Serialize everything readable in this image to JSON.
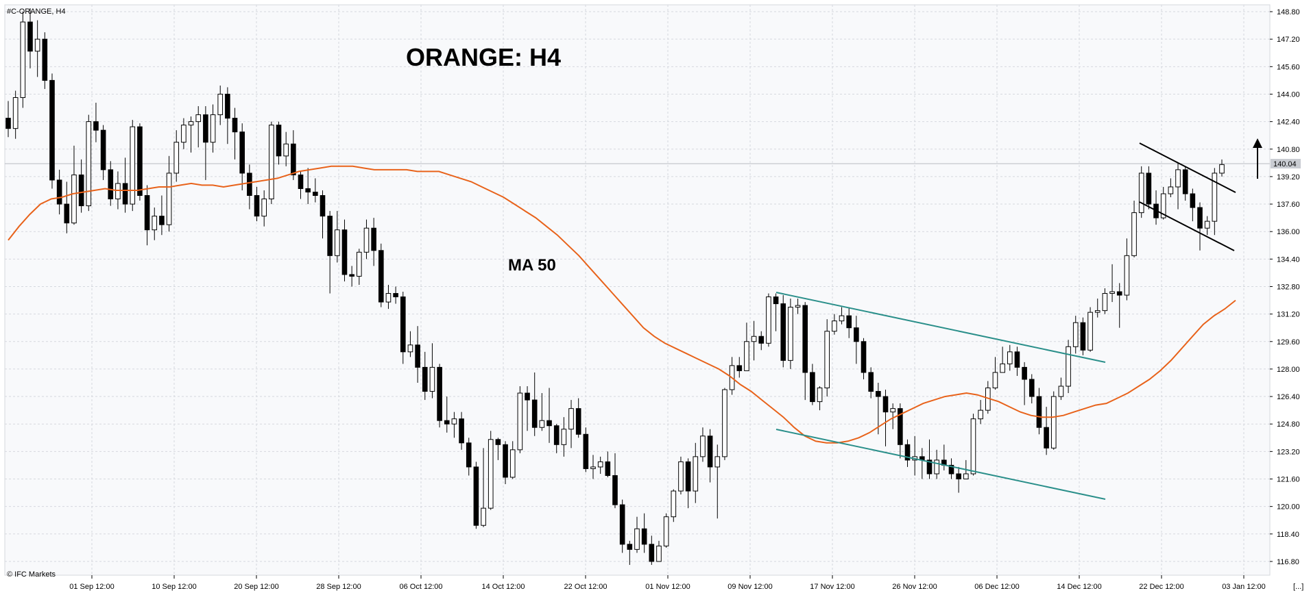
{
  "window": {
    "symbol_label": "#C-ORANGE, H4",
    "watermark": "© IFC Markets",
    "corner_marker": "[...]"
  },
  "chart_data": {
    "type": "candlestick",
    "title": "ORANGE: H4",
    "indicator_label": "MA 50",
    "current_price_label": "140.04",
    "ylim": [
      116.0,
      149.2
    ],
    "y_ticks": [
      "148.80",
      "147.20",
      "145.60",
      "144.00",
      "142.40",
      "140.80",
      "139.20",
      "137.60",
      "136.00",
      "134.40",
      "132.80",
      "131.20",
      "129.60",
      "128.00",
      "126.40",
      "124.80",
      "123.20",
      "121.60",
      "120.00",
      "118.40",
      "116.80"
    ],
    "x_ticks": [
      "01 Sep 12:00",
      "10 Sep 12:00",
      "20 Sep 12:00",
      "28 Sep 12:00",
      "06 Oct 12:00",
      "14 Oct 12:00",
      "22 Oct 12:00",
      "01 Nov 12:00",
      "09 Nov 12:00",
      "17 Nov 12:00",
      "26 Nov 12:00",
      "06 Dec 12:00",
      "14 Dec 12:00",
      "22 Dec 12:00",
      "03 Jan 12:00"
    ],
    "grid": true,
    "colors": {
      "bull": "#ffffff",
      "bear": "#000000",
      "ma": "#e8621a",
      "channel": "#2a8f8a",
      "trendline": "#000000",
      "arrow": "#000000"
    },
    "series": [
      {
        "name": "MA 50",
        "values": [
          135.5,
          136.3,
          137.0,
          137.6,
          137.9,
          138.0,
          138.2,
          138.3,
          138.4,
          138.5,
          138.4,
          138.4,
          138.4,
          138.5,
          138.6,
          138.6,
          138.7,
          138.8,
          138.7,
          138.7,
          138.6,
          138.7,
          138.8,
          138.9,
          139.0,
          139.1,
          139.3,
          139.5,
          139.6,
          139.7,
          139.8,
          139.8,
          139.8,
          139.7,
          139.6,
          139.6,
          139.6,
          139.6,
          139.5,
          139.5,
          139.5,
          139.3,
          139.1,
          138.9,
          138.6,
          138.3,
          138.0,
          137.6,
          137.2,
          136.8,
          136.3,
          135.8,
          135.2,
          134.6,
          133.9,
          133.2,
          132.5,
          131.8,
          131.1,
          130.4,
          129.9,
          129.5,
          129.2,
          128.9,
          128.6,
          128.3,
          128.0,
          127.6,
          127.1,
          126.7,
          126.2,
          125.7,
          125.2,
          124.6,
          124.1,
          123.8,
          123.7,
          123.7,
          123.8,
          124.0,
          124.3,
          124.7,
          125.1,
          125.4,
          125.7,
          126.0,
          126.2,
          126.4,
          126.5,
          126.6,
          126.5,
          126.3,
          126.1,
          125.8,
          125.5,
          125.3,
          125.2,
          125.2,
          125.3,
          125.5,
          125.7,
          125.9,
          126.0,
          126.3,
          126.6,
          127.0,
          127.4,
          127.9,
          128.5,
          129.2,
          129.9,
          130.6,
          131.1,
          131.5,
          132.0
        ]
      }
    ],
    "candles": [
      [
        142.6,
        142.0,
        143.6,
        141.5
      ],
      [
        142.0,
        143.8,
        144.2,
        141.4
      ],
      [
        143.8,
        148.2,
        148.8,
        143.2
      ],
      [
        148.2,
        146.5,
        149.0,
        145.5
      ],
      [
        146.5,
        147.2,
        148.3,
        145.0
      ],
      [
        147.2,
        144.8,
        147.6,
        144.3
      ],
      [
        144.8,
        139.0,
        145.2,
        138.5
      ],
      [
        139.0,
        137.6,
        139.6,
        137.0
      ],
      [
        137.6,
        136.5,
        138.9,
        135.9
      ],
      [
        136.5,
        139.3,
        141.0,
        136.4
      ],
      [
        139.3,
        137.5,
        140.2,
        137.1
      ],
      [
        137.5,
        142.4,
        142.8,
        137.2
      ],
      [
        142.4,
        141.9,
        143.5,
        141.2
      ],
      [
        141.9,
        139.6,
        142.2,
        139.0
      ],
      [
        139.6,
        137.9,
        140.1,
        137.5
      ],
      [
        137.9,
        138.8,
        139.5,
        137.3
      ],
      [
        138.8,
        137.6,
        140.3,
        137.1
      ],
      [
        137.6,
        142.1,
        142.5,
        137.2
      ],
      [
        142.1,
        138.1,
        142.3,
        137.8
      ],
      [
        138.1,
        136.1,
        138.7,
        135.2
      ],
      [
        136.1,
        136.9,
        137.4,
        135.5
      ],
      [
        136.9,
        136.4,
        138.1,
        135.8
      ],
      [
        136.4,
        139.4,
        140.4,
        136.0
      ],
      [
        139.4,
        141.2,
        141.9,
        138.9
      ],
      [
        141.2,
        142.2,
        142.6,
        140.8
      ],
      [
        142.2,
        142.4,
        142.7,
        140.6
      ],
      [
        142.4,
        142.8,
        143.3,
        140.9
      ],
      [
        142.8,
        141.2,
        143.3,
        139.0
      ],
      [
        141.2,
        142.8,
        143.4,
        140.6
      ],
      [
        142.8,
        144.0,
        144.5,
        142.2
      ],
      [
        144.0,
        142.6,
        144.4,
        141.1
      ],
      [
        142.6,
        141.8,
        143.2,
        140.2
      ],
      [
        141.8,
        139.4,
        142.3,
        138.4
      ],
      [
        139.4,
        138.1,
        139.9,
        137.3
      ],
      [
        138.1,
        136.9,
        138.6,
        136.6
      ],
      [
        136.9,
        137.9,
        138.4,
        136.3
      ],
      [
        137.9,
        142.2,
        142.4,
        137.6
      ],
      [
        142.2,
        140.4,
        142.4,
        139.9
      ],
      [
        140.4,
        141.1,
        141.8,
        139.8
      ],
      [
        141.1,
        139.3,
        141.9,
        139.0
      ],
      [
        139.3,
        138.5,
        139.5,
        137.9
      ],
      [
        138.5,
        138.3,
        139.7,
        137.6
      ],
      [
        138.3,
        138.1,
        139.1,
        137.7
      ],
      [
        138.1,
        136.9,
        138.4,
        135.6
      ],
      [
        136.9,
        134.6,
        137.2,
        132.4
      ],
      [
        134.6,
        136.1,
        137.2,
        134.2
      ],
      [
        136.1,
        133.5,
        136.7,
        133.1
      ],
      [
        133.5,
        133.4,
        134.0,
        132.8
      ],
      [
        133.4,
        134.8,
        135.0,
        132.9
      ],
      [
        134.8,
        136.2,
        136.7,
        134.4
      ],
      [
        136.2,
        134.9,
        136.8,
        134.0
      ],
      [
        134.9,
        131.9,
        135.3,
        131.6
      ],
      [
        131.9,
        132.4,
        132.9,
        131.5
      ],
      [
        132.4,
        132.2,
        132.8,
        131.8
      ],
      [
        132.2,
        129.0,
        132.5,
        128.3
      ],
      [
        129.0,
        129.4,
        130.2,
        128.7
      ],
      [
        129.4,
        128.1,
        130.5,
        127.2
      ],
      [
        128.1,
        126.7,
        129.0,
        126.2
      ],
      [
        126.7,
        128.1,
        129.5,
        126.3
      ],
      [
        128.1,
        125.0,
        128.3,
        124.6
      ],
      [
        125.0,
        124.8,
        126.4,
        124.3
      ],
      [
        124.8,
        125.1,
        125.5,
        124.0
      ],
      [
        125.1,
        123.7,
        125.5,
        123.3
      ],
      [
        123.7,
        122.3,
        124.0,
        121.8
      ],
      [
        122.3,
        118.9,
        122.6,
        118.7
      ],
      [
        118.9,
        119.9,
        123.4,
        118.8
      ],
      [
        119.9,
        123.9,
        124.4,
        119.8
      ],
      [
        123.9,
        123.6,
        124.0,
        122.7
      ],
      [
        123.6,
        121.7,
        123.8,
        121.3
      ],
      [
        121.7,
        123.3,
        123.8,
        121.6
      ],
      [
        123.3,
        126.6,
        127.0,
        123.1
      ],
      [
        126.6,
        126.2,
        127.0,
        124.4
      ],
      [
        126.2,
        124.6,
        127.8,
        124.1
      ],
      [
        124.6,
        125.0,
        126.6,
        124.4
      ],
      [
        125.0,
        124.7,
        126.9,
        123.7
      ],
      [
        124.7,
        123.6,
        124.8,
        123.1
      ],
      [
        123.6,
        124.5,
        125.2,
        122.9
      ],
      [
        124.5,
        125.7,
        126.2,
        123.4
      ],
      [
        125.7,
        124.2,
        126.3,
        124.0
      ],
      [
        124.2,
        122.2,
        124.6,
        122.0
      ],
      [
        122.2,
        122.3,
        123.0,
        121.6
      ],
      [
        122.3,
        122.6,
        122.9,
        121.9
      ],
      [
        122.6,
        121.8,
        123.2,
        121.7
      ],
      [
        121.8,
        120.1,
        123.1,
        119.9
      ],
      [
        120.1,
        117.8,
        120.4,
        117.3
      ],
      [
        117.8,
        117.5,
        118.0,
        116.6
      ],
      [
        117.5,
        118.7,
        119.4,
        117.3
      ],
      [
        118.7,
        117.8,
        119.6,
        117.3
      ],
      [
        117.8,
        116.8,
        118.3,
        116.6
      ],
      [
        116.8,
        117.7,
        118.0,
        116.9
      ],
      [
        117.7,
        119.4,
        119.6,
        117.6
      ],
      [
        119.4,
        120.9,
        121.0,
        119.1
      ],
      [
        120.9,
        122.6,
        122.9,
        120.7
      ],
      [
        122.6,
        120.9,
        122.8,
        119.9
      ],
      [
        120.9,
        122.9,
        123.7,
        120.2
      ],
      [
        122.9,
        124.1,
        124.6,
        122.6
      ],
      [
        124.1,
        122.3,
        124.5,
        121.4
      ],
      [
        122.3,
        122.9,
        123.6,
        119.3
      ],
      [
        122.9,
        126.8,
        126.9,
        122.7
      ],
      [
        126.8,
        128.2,
        128.7,
        126.5
      ],
      [
        128.2,
        127.9,
        128.7,
        127.5
      ],
      [
        127.9,
        129.6,
        130.7,
        128.0
      ],
      [
        129.6,
        129.9,
        130.8,
        128.5
      ],
      [
        129.9,
        129.5,
        130.2,
        129.1
      ],
      [
        129.5,
        132.2,
        132.4,
        129.3
      ],
      [
        132.2,
        131.8,
        132.4,
        130.2
      ],
      [
        131.8,
        128.5,
        132.3,
        128.1
      ],
      [
        128.5,
        131.6,
        132.1,
        128.0
      ],
      [
        131.6,
        131.7,
        132.1,
        131.2
      ],
      [
        131.7,
        127.8,
        131.9,
        126.2
      ],
      [
        127.8,
        126.1,
        128.3,
        125.9
      ],
      [
        126.1,
        126.9,
        127.0,
        125.6
      ],
      [
        126.9,
        130.2,
        130.9,
        126.4
      ],
      [
        130.2,
        130.8,
        131.2,
        130.0
      ],
      [
        130.8,
        131.1,
        131.6,
        130.6
      ],
      [
        131.1,
        130.4,
        131.6,
        129.8
      ],
      [
        130.4,
        129.6,
        131.1,
        128.3
      ],
      [
        129.6,
        127.8,
        129.8,
        127.4
      ],
      [
        127.8,
        126.7,
        128.1,
        126.3
      ],
      [
        126.7,
        126.4,
        127.2,
        124.2
      ],
      [
        126.4,
        125.5,
        126.8,
        123.5
      ],
      [
        125.5,
        125.7,
        126.0,
        124.5
      ],
      [
        125.7,
        123.6,
        126.0,
        122.8
      ],
      [
        123.6,
        122.7,
        123.9,
        122.3
      ],
      [
        122.7,
        122.9,
        124.1,
        121.8
      ],
      [
        122.9,
        122.7,
        123.4,
        121.6
      ],
      [
        122.7,
        121.9,
        123.9,
        121.6
      ],
      [
        121.9,
        122.7,
        123.3,
        121.6
      ],
      [
        122.7,
        122.4,
        123.6,
        122.1
      ],
      [
        122.4,
        121.9,
        122.8,
        121.6
      ],
      [
        121.9,
        121.6,
        122.3,
        120.8
      ],
      [
        121.6,
        121.9,
        122.7,
        121.7
      ],
      [
        121.9,
        125.1,
        125.4,
        121.8
      ],
      [
        125.1,
        125.6,
        126.2,
        124.8
      ],
      [
        125.6,
        126.9,
        127.3,
        125.4
      ],
      [
        126.9,
        127.8,
        128.7,
        126.8
      ],
      [
        127.8,
        128.3,
        129.3,
        127.9
      ],
      [
        128.3,
        129.0,
        129.4,
        127.9
      ],
      [
        129.0,
        128.1,
        129.3,
        127.6
      ],
      [
        128.1,
        127.4,
        128.4,
        125.9
      ],
      [
        127.4,
        126.4,
        127.7,
        126.0
      ],
      [
        126.4,
        124.6,
        126.9,
        124.2
      ],
      [
        124.6,
        123.4,
        125.8,
        123.0
      ],
      [
        123.4,
        126.4,
        126.7,
        123.3
      ],
      [
        126.4,
        127.0,
        127.5,
        126.2
      ],
      [
        127.0,
        129.3,
        129.7,
        126.6
      ],
      [
        129.3,
        130.7,
        131.1,
        128.9
      ],
      [
        130.7,
        129.1,
        131.0,
        128.8
      ],
      [
        129.1,
        131.3,
        131.6,
        129.0
      ],
      [
        131.3,
        131.4,
        132.1,
        131.0
      ],
      [
        131.4,
        132.4,
        132.7,
        131.2
      ],
      [
        132.4,
        132.5,
        134.1,
        131.9
      ],
      [
        132.5,
        132.3,
        133.0,
        130.4
      ],
      [
        132.3,
        134.6,
        135.6,
        132.0
      ],
      [
        134.6,
        137.1,
        137.8,
        134.5
      ],
      [
        137.1,
        139.4,
        139.8,
        136.8
      ],
      [
        139.4,
        137.6,
        139.8,
        137.3
      ],
      [
        137.6,
        136.8,
        138.4,
        136.4
      ],
      [
        136.8,
        138.2,
        138.6,
        136.7
      ],
      [
        138.2,
        138.6,
        139.1,
        138.0
      ],
      [
        138.6,
        139.6,
        140.0,
        137.3
      ],
      [
        139.6,
        138.2,
        139.8,
        137.8
      ],
      [
        138.2,
        137.4,
        138.5,
        136.6
      ],
      [
        137.4,
        136.2,
        137.7,
        134.9
      ],
      [
        136.2,
        136.6,
        136.9,
        135.8
      ],
      [
        136.6,
        139.4,
        139.7,
        135.8
      ],
      [
        139.4,
        139.9,
        140.2,
        139.2
      ]
    ]
  }
}
